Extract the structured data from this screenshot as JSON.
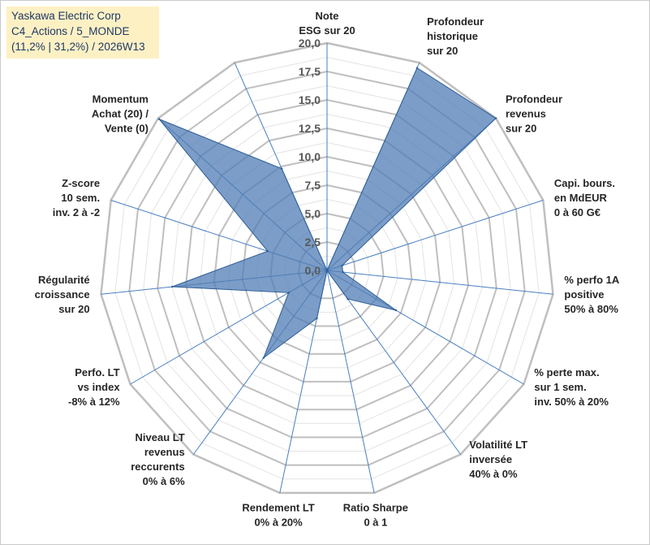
{
  "header": {
    "line1": "Yaskawa Electric Corp",
    "line2": "C4_Actions / 5_MONDE",
    "line3": "(11,2% | 31,2%) / 2026W13"
  },
  "colors": {
    "fill": "#4f7cb4",
    "fill_opacity": "0.75",
    "stroke": "#2e5d96",
    "grid_major": "#bfbfbf",
    "grid_minor": "#e3e3e3",
    "spoke": "#4a7fc1"
  },
  "chart_data": {
    "type": "radar",
    "title": "Yaskawa Electric Corp",
    "rmin": 0,
    "rmax": 20,
    "tick_values": [
      0,
      2.5,
      5,
      7.5,
      10,
      12.5,
      15,
      17.5,
      20
    ],
    "tick_labels": [
      "0,0",
      "2,5",
      "5,0",
      "7,5",
      "10,0",
      "12,5",
      "15,0",
      "17,5",
      "20,0"
    ],
    "minor_step": 1.25,
    "axes": [
      {
        "label": [
          "Note",
          "ESG sur 20"
        ],
        "value": 0
      },
      {
        "label": [
          "Profondeur",
          "historique",
          "sur 20"
        ],
        "value": 19.5
      },
      {
        "label": [
          "Profondeur",
          "revenus",
          "sur 20"
        ],
        "value": 20
      },
      {
        "label": [
          "Capi. bours.",
          "en MdEUR",
          "0 à 60 G€"
        ],
        "value": 1.4
      },
      {
        "label": [
          "% perfo 1A",
          "positive",
          "50% à 80%"
        ],
        "value": 1.4
      },
      {
        "label": [
          "% perte max.",
          "sur 1 sem.",
          "inv. 50% à 20%"
        ],
        "value": 7.0
      },
      {
        "label": [
          "Volatilité LT",
          "inversée",
          "40% à 0%"
        ],
        "value": 3.1
      },
      {
        "label": [
          "Ratio Sharpe",
          "0 à 1"
        ],
        "value": 0
      },
      {
        "label": [
          "Rendement LT",
          "0% à 20%"
        ],
        "value": 4.3
      },
      {
        "label": [
          "Niveau LT",
          "revenus",
          "reccurents",
          "0% à 6%"
        ],
        "value": 9.5
      },
      {
        "label": [
          "Perfo. LT",
          "vs index",
          "-8% à 12%"
        ],
        "value": 3.9
      },
      {
        "label": [
          "Régularité",
          "croissance",
          "sur 20"
        ],
        "value": 13.7
      },
      {
        "label": [
          "Z-score",
          "10 sem.",
          "inv. 2 à -2"
        ],
        "value": 5.5
      },
      {
        "label": [
          "Momentum",
          "Achat (20) /",
          "Vente (0)"
        ],
        "value": 19.9
      },
      {
        "label": [
          "",
          "",
          ""
        ],
        "value": 9.8
      }
    ]
  }
}
